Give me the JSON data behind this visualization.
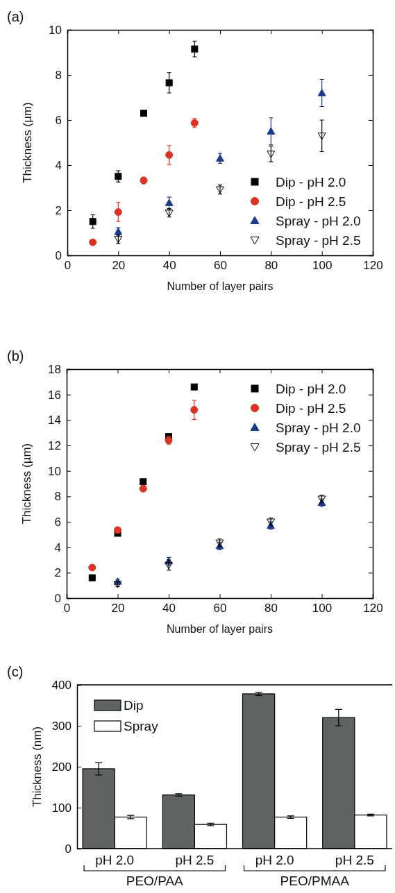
{
  "chart_data": [
    {
      "type": "scatter",
      "title": "(a)",
      "xlabel": "Number of layer pairs",
      "ylabel": "Thickness (µm)",
      "xlim": [
        0,
        120
      ],
      "xticks": [
        0,
        20,
        40,
        60,
        80,
        100,
        120
      ],
      "ylim": [
        0,
        10
      ],
      "yticks": [
        0,
        2,
        4,
        6,
        8,
        10
      ],
      "legend": "bottom right",
      "grid": false,
      "series": [
        {
          "name": "Dip - pH 2.0",
          "color": "#000000",
          "marker": "square",
          "x": [
            10,
            20,
            30,
            40,
            50
          ],
          "values": [
            1.5,
            3.5,
            6.3,
            7.65,
            9.15
          ],
          "errors": [
            0.3,
            0.25,
            0.05,
            0.45,
            0.35
          ]
        },
        {
          "name": "Dip - pH 2.5",
          "color": "#dd3322",
          "marker": "circle",
          "x": [
            10,
            20,
            30,
            40,
            50
          ],
          "values": [
            0.58,
            1.92,
            3.32,
            4.45,
            5.87
          ],
          "errors": [
            null,
            0.42,
            0.15,
            0.42,
            0.2
          ]
        },
        {
          "name": "Spray - pH 2.0",
          "color": "#1a3a8c",
          "marker": "triangle",
          "x": [
            20,
            40,
            60,
            80,
            100
          ],
          "values": [
            1.05,
            2.33,
            4.3,
            5.5,
            7.2
          ],
          "errors": [
            0.18,
            0.25,
            0.22,
            0.6,
            0.6
          ]
        },
        {
          "name": "Spray - pH 2.5",
          "color": "#000000",
          "marker": "triangle-down",
          "x": [
            20,
            40,
            60,
            80,
            100
          ],
          "values": [
            0.72,
            1.88,
            2.92,
            4.5,
            5.3
          ],
          "errors": [
            0.2,
            0.18,
            0.2,
            0.35,
            0.7
          ]
        }
      ]
    },
    {
      "type": "scatter",
      "title": "(b)",
      "xlabel": "Number of layer pairs",
      "ylabel": "Thickness (µm)",
      "xlim": [
        0,
        120
      ],
      "xticks": [
        0,
        20,
        40,
        60,
        80,
        100,
        120
      ],
      "ylim": [
        0,
        18
      ],
      "yticks": [
        0,
        2,
        4,
        6,
        8,
        10,
        12,
        14,
        16,
        18
      ],
      "legend": "top right",
      "grid": false,
      "series": [
        {
          "name": "Dip - pH 2.0",
          "color": "#000000",
          "marker": "square",
          "x": [
            10,
            20,
            30,
            40,
            50
          ],
          "values": [
            1.6,
            5.1,
            9.15,
            12.7,
            16.6
          ]
        },
        {
          "name": "Dip - pH 2.5",
          "color": "#dd3322",
          "marker": "circle",
          "x": [
            10,
            20,
            30,
            40,
            50
          ],
          "values": [
            2.4,
            5.35,
            8.6,
            12.4,
            14.8
          ],
          "errors": [
            null,
            0.2,
            null,
            0.3,
            0.75
          ]
        },
        {
          "name": "Spray - pH 2.0",
          "color": "#1a3a8c",
          "marker": "triangle",
          "x": [
            20,
            40,
            60,
            80,
            100
          ],
          "values": [
            1.3,
            2.9,
            4.1,
            5.7,
            7.5
          ],
          "errors": [
            0.2,
            0.3,
            0.3,
            0.3,
            0.3
          ]
        },
        {
          "name": "Spray - pH 2.5",
          "color": "#000000",
          "marker": "triangle-down",
          "x": [
            20,
            40,
            60,
            80,
            100
          ],
          "values": [
            1.1,
            2.6,
            4.35,
            6.0,
            7.8
          ],
          "errors": [
            0.2,
            0.4,
            0.3,
            0.3,
            0.3
          ]
        }
      ]
    },
    {
      "type": "bar",
      "title": "(c)",
      "ylabel": "Thickness (nm)",
      "categories": [
        "pH 2.0",
        "pH 2.5",
        "pH 2.0",
        "pH 2.5"
      ],
      "ylim": [
        0,
        400
      ],
      "yticks": [
        0,
        100,
        200,
        300,
        400
      ],
      "legend": "top left",
      "grid": false,
      "annotations": [
        "PEO/PAA",
        "PEO/PMAA"
      ],
      "series": [
        {
          "name": "Dip",
          "color": "#5f6361",
          "values": [
            195,
            131,
            378,
            320
          ],
          "errors": [
            15,
            3,
            4,
            20
          ]
        },
        {
          "name": "Spray",
          "color": "#ffffff",
          "values": [
            77,
            59,
            77,
            82
          ],
          "errors": [
            4,
            3,
            3,
            2
          ]
        }
      ]
    }
  ]
}
